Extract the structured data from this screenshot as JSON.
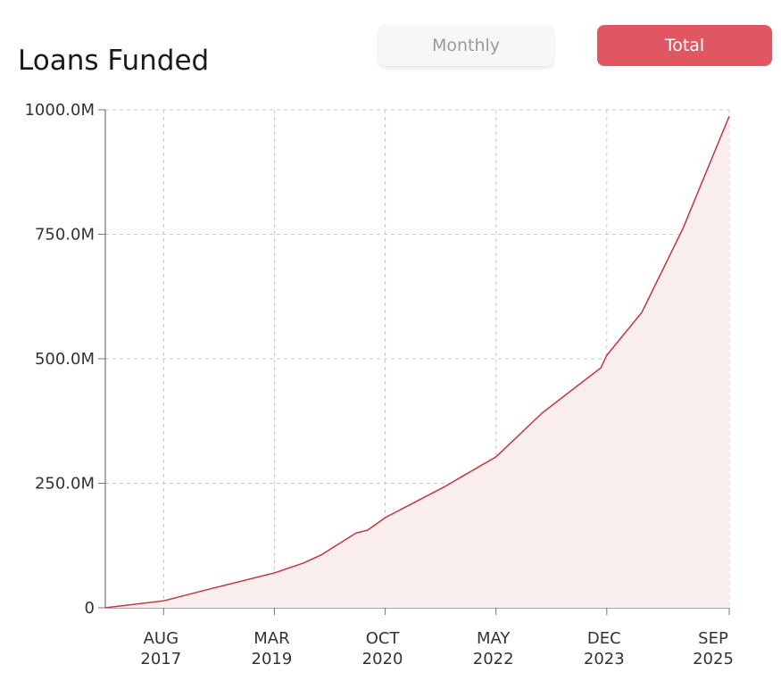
{
  "chart_data": {
    "type": "area",
    "title": "Loans Funded",
    "buttons": [
      "Monthly",
      "Total"
    ],
    "x": [
      "2016-10",
      "2017-08",
      "2018-04",
      "2019-03",
      "2019-08",
      "2019-11",
      "2020-05",
      "2020-07",
      "2020-10",
      "2021-08",
      "2022-05",
      "2023-01",
      "2023-11",
      "2023-12",
      "2024-06",
      "2025-01",
      "2025-09"
    ],
    "series": [
      {
        "name": "Loans Funded",
        "color": "#c8323a",
        "values": [
          0,
          14,
          38,
          70,
          90,
          106,
          150,
          156,
          181,
          242,
          303,
          392,
          482,
          507,
          593,
          760,
          987
        ]
      }
    ],
    "fill_color": "#fbeeee",
    "xlim": [
      "2016-10",
      "2025-09"
    ],
    "xticks": [
      {
        "value": "2017-08",
        "label": [
          "AUG",
          "2017"
        ]
      },
      {
        "value": "2019-03",
        "label": [
          "MAR",
          "2019"
        ]
      },
      {
        "value": "2020-10",
        "label": [
          "OCT",
          "2020"
        ]
      },
      {
        "value": "2022-05",
        "label": [
          "MAY",
          "2022"
        ]
      },
      {
        "value": "2023-12",
        "label": [
          "DEC",
          "2023"
        ]
      },
      {
        "value": "2025-09",
        "label": [
          "SEP",
          "2025"
        ]
      }
    ],
    "ylim": [
      0,
      1000
    ],
    "yticks": [
      0,
      {
        "value": 250,
        "label": "250.0M"
      },
      {
        "value": 500,
        "label": "500.0M"
      },
      {
        "value": 750,
        "label": "750.0M"
      },
      {
        "value": 1000,
        "label": "1000.0M"
      }
    ],
    "grid": true
  }
}
